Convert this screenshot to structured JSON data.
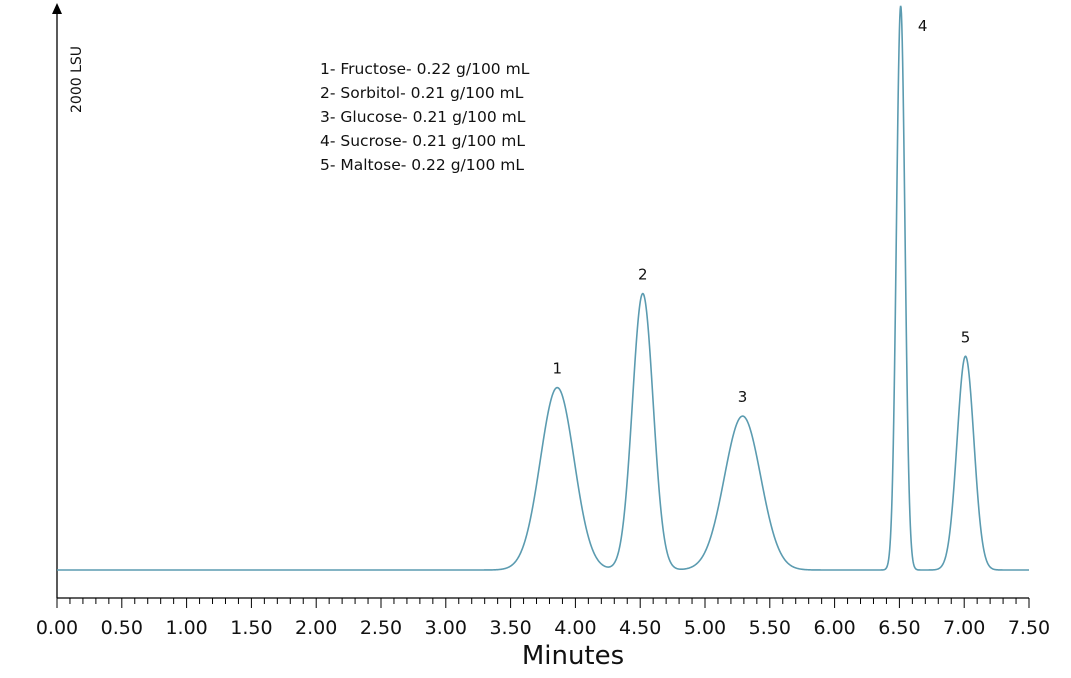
{
  "chart_data": {
    "type": "line",
    "title": "",
    "xlabel": "Minutes",
    "ylabel": "2000 LSU",
    "xlim": [
      0,
      7.5
    ],
    "ylim": [
      0,
      2000
    ],
    "grid": false,
    "x_ticks": [
      "0.00",
      "0.50",
      "1.00",
      "1.50",
      "2.00",
      "2.50",
      "3.00",
      "3.50",
      "4.00",
      "4.50",
      "5.00",
      "5.50",
      "6.00",
      "6.50",
      "7.00",
      "7.50"
    ],
    "line_color": "#5b9bb0",
    "baseline": 0,
    "peaks": [
      {
        "label": "1",
        "retention_time": 3.86,
        "height": 640,
        "width": 0.13
      },
      {
        "label": "2",
        "retention_time": 4.52,
        "height": 970,
        "width": 0.08
      },
      {
        "label": "3",
        "retention_time": 5.29,
        "height": 540,
        "width": 0.14
      },
      {
        "label": "4",
        "retention_time": 6.51,
        "height": 1980,
        "width": 0.033
      },
      {
        "label": "5",
        "retention_time": 7.01,
        "height": 750,
        "width": 0.065
      }
    ],
    "legend": [
      "1- Fructose- 0.22 g/100 mL",
      "2- Sorbitol- 0.21 g/100 mL",
      "3- Glucose- 0.21 g/100 mL",
      "4- Sucrose- 0.21 g/100 mL",
      "5- Maltose- 0.22 g/100 mL"
    ]
  }
}
